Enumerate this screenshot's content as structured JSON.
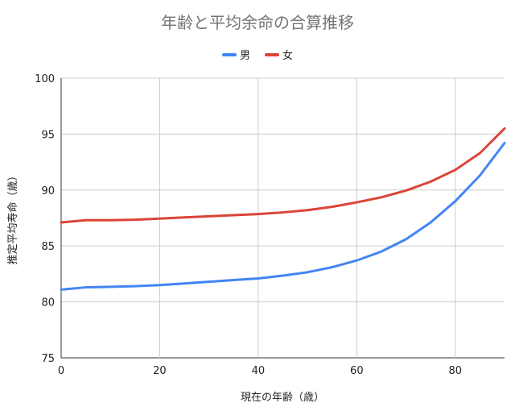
{
  "chart_data": {
    "type": "line",
    "title": "年齢と平均余命の合算推移",
    "xlabel": "現在の年齢（歳）",
    "ylabel": "推定平均寿命（歳）",
    "xlim": [
      0,
      90
    ],
    "ylim": [
      75,
      100
    ],
    "xticks": [
      0,
      20,
      40,
      60,
      80
    ],
    "yticks": [
      75,
      80,
      85,
      90,
      95,
      100
    ],
    "legend_position": "top",
    "grid": true,
    "x": [
      0,
      5,
      10,
      15,
      20,
      25,
      30,
      35,
      40,
      45,
      50,
      55,
      60,
      65,
      70,
      75,
      80,
      85,
      90
    ],
    "series": [
      {
        "name": "男",
        "color": "#4285f4",
        "values": [
          81.1,
          81.3,
          81.35,
          81.4,
          81.5,
          81.65,
          81.8,
          81.95,
          82.1,
          82.35,
          82.65,
          83.1,
          83.7,
          84.5,
          85.6,
          87.1,
          89.0,
          91.3,
          94.2
        ]
      },
      {
        "name": "女",
        "color": "#db4437",
        "values": [
          87.1,
          87.3,
          87.3,
          87.35,
          87.45,
          87.55,
          87.65,
          87.75,
          87.85,
          88.0,
          88.2,
          88.5,
          88.9,
          89.35,
          89.95,
          90.75,
          91.8,
          93.3,
          95.5
        ]
      }
    ]
  }
}
